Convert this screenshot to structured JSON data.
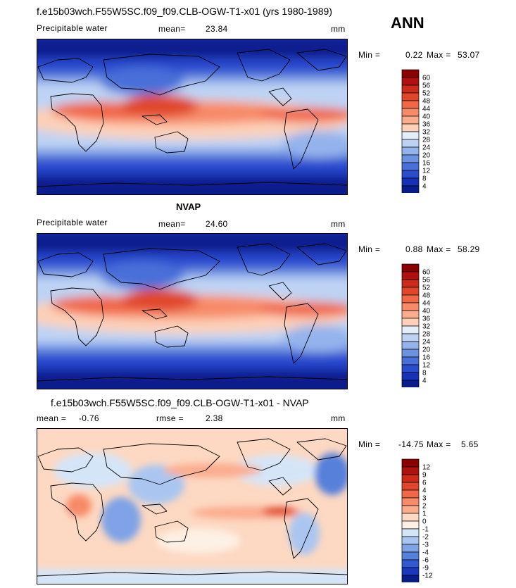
{
  "header": {
    "title": "f.e15b03wch.F55W5SC.f09_f09.CLB-OGW-T1-x01 (yrs 1980-1989)",
    "season": "ANN"
  },
  "chart_data": [
    {
      "type": "heatmap",
      "title": "",
      "variable": "Precipitable water",
      "mean_label": "mean=",
      "mean": "23.84",
      "units": "mm",
      "min_label": "Min =",
      "min": "0.22",
      "max_label": "Max =",
      "max": "53.07",
      "colorbar_ticks": [
        "60",
        "56",
        "52",
        "48",
        "44",
        "40",
        "36",
        "32",
        "28",
        "24",
        "20",
        "16",
        "12",
        "8",
        "4"
      ],
      "colorbar_colors": [
        "#8a0000",
        "#b01010",
        "#cc2a1a",
        "#e0472a",
        "#f06848",
        "#f78a68",
        "#fbac8e",
        "#fdd0b8",
        "#e3eefa",
        "#bed3f4",
        "#94b3ec",
        "#6e92e2",
        "#4a6fd8",
        "#2a4ccf",
        "#1631b8",
        "#0a1b8c"
      ]
    },
    {
      "type": "heatmap",
      "title": "NVAP",
      "variable": "Precipitable water",
      "mean_label": "mean=",
      "mean": "24.60",
      "units": "mm",
      "min_label": "Min =",
      "min": "0.88",
      "max_label": "Max =",
      "max": "58.29",
      "colorbar_ticks": [
        "60",
        "56",
        "52",
        "48",
        "44",
        "40",
        "36",
        "32",
        "28",
        "24",
        "20",
        "16",
        "12",
        "8",
        "4"
      ],
      "colorbar_colors": [
        "#8a0000",
        "#b01010",
        "#cc2a1a",
        "#e0472a",
        "#f06848",
        "#f78a68",
        "#fbac8e",
        "#fdd0b8",
        "#e3eefa",
        "#bed3f4",
        "#94b3ec",
        "#6e92e2",
        "#4a6fd8",
        "#2a4ccf",
        "#1631b8",
        "#0a1b8c"
      ]
    },
    {
      "type": "heatmap",
      "title": "f.e15b03wch.F55W5SC.f09_f09.CLB-OGW-T1-x01 - NVAP",
      "mean_label": "mean =",
      "mean": "-0.76",
      "rmse_label": "rmse =",
      "rmse": "2.38",
      "units": "mm",
      "min_label": "Min =",
      "min": "-14.75",
      "max_label": "Max =",
      "max": "5.65",
      "colorbar_ticks": [
        "12",
        "9",
        "6",
        "4",
        "3",
        "2",
        "1",
        "0",
        "-1",
        "-2",
        "-3",
        "-4",
        "-6",
        "-9",
        "-12"
      ],
      "colorbar_colors": [
        "#8a0000",
        "#b01010",
        "#cc2a1a",
        "#e0472a",
        "#f06848",
        "#f78a68",
        "#fbac8e",
        "#fdd8c2",
        "#fdf0e4",
        "#d5e5f8",
        "#aac6f0",
        "#7fa3e6",
        "#5780da",
        "#325ad0",
        "#1a38bc",
        "#0a1b8c"
      ]
    }
  ]
}
